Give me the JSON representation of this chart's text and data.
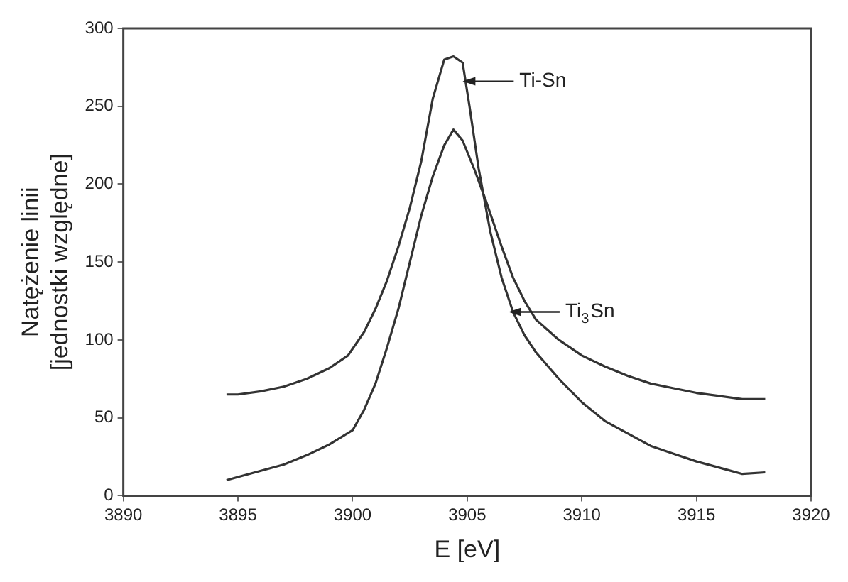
{
  "chart_data": {
    "type": "line",
    "xlabel": "E [eV]",
    "ylabel": "Natężenie linii\n[jednostki względne]",
    "xlim": [
      3890,
      3920
    ],
    "xticks": [
      3890,
      3895,
      3900,
      3905,
      3910,
      3915,
      3920
    ],
    "ylim": [
      0,
      300
    ],
    "yticks": [
      0,
      50,
      100,
      150,
      200,
      250,
      300
    ],
    "grid": false,
    "legend": false,
    "marker": "none",
    "line_style": "solid",
    "series": [
      {
        "color": "#333333",
        "x": [
          3894.5,
          3895,
          3896,
          3897,
          3898,
          3899,
          3899.8,
          3900.5,
          3901,
          3901.5,
          3902,
          3902.5,
          3903,
          3903.5,
          3904,
          3904.4,
          3904.8,
          3905.1,
          3905.5,
          3906,
          3906.5,
          3907,
          3907.5,
          3908,
          3909,
          3910,
          3911,
          3912,
          3913,
          3914,
          3915,
          3916,
          3917,
          3918
        ],
        "values": [
          65,
          65,
          67,
          70,
          75,
          82,
          90,
          105,
          120,
          138,
          160,
          185,
          215,
          255,
          280,
          282,
          278,
          250,
          210,
          170,
          140,
          118,
          103,
          92,
          75,
          60,
          48,
          40,
          32,
          27,
          22,
          18,
          14,
          15
        ]
      },
      {
        "color": "#333333",
        "x": [
          3894.5,
          3895,
          3896,
          3897,
          3898,
          3899,
          3900,
          3900.5,
          3901,
          3901.5,
          3902,
          3902.5,
          3903,
          3903.5,
          3904,
          3904.4,
          3904.8,
          3905.3,
          3905.8,
          3906.5,
          3907,
          3907.5,
          3908,
          3909,
          3910,
          3911,
          3912,
          3913,
          3914,
          3915,
          3916,
          3917,
          3918
        ],
        "values": [
          10,
          12,
          16,
          20,
          26,
          33,
          42,
          55,
          72,
          95,
          120,
          150,
          180,
          205,
          225,
          235,
          228,
          210,
          190,
          160,
          140,
          125,
          113,
          100,
          90,
          83,
          77,
          72,
          69,
          66,
          64,
          62,
          62
        ]
      }
    ],
    "annotations": [
      {
        "text": "Ti-Sn",
        "x": 3904.8,
        "y": 266
      },
      {
        "text": "Ti$_{3}$Sn",
        "x": 3906.8,
        "y": 118
      }
    ]
  }
}
